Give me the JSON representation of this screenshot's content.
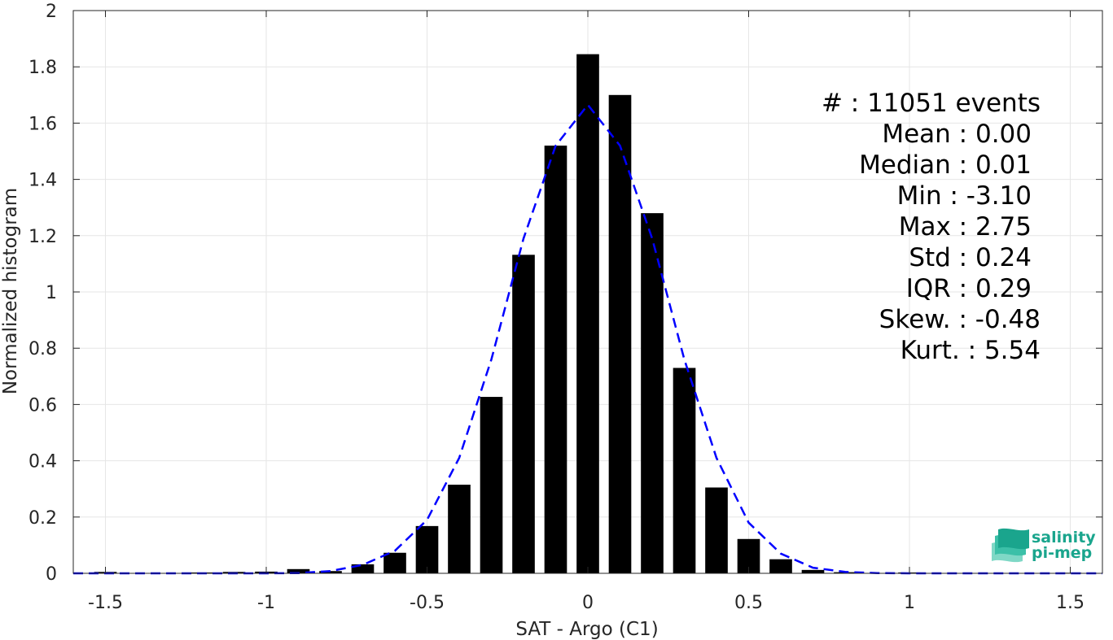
{
  "chart_data": {
    "type": "bar",
    "xlabel": "SAT - Argo (C1)",
    "ylabel": "Normalized histogram",
    "xlim": [
      -1.6,
      1.6
    ],
    "ylim": [
      0,
      2
    ],
    "grid": true,
    "xticks": [
      -1.5,
      -1,
      -0.5,
      0,
      0.5,
      1,
      1.5
    ],
    "xtick_labels": [
      "-1.5",
      "-1",
      "-0.5",
      "0",
      "0.5",
      "1",
      "1.5"
    ],
    "yticks": [
      0,
      0.2,
      0.4,
      0.6,
      0.8,
      1,
      1.2,
      1.4,
      1.6,
      1.8,
      2
    ],
    "ytick_labels": [
      "0",
      "0.2",
      "0.4",
      "0.6",
      "0.8",
      "1",
      "1.2",
      "1.4",
      "1.6",
      "1.8",
      "2"
    ],
    "bar_width": 0.07,
    "bars": {
      "x": [
        -1.5,
        -1.4,
        -1.3,
        -1.2,
        -1.1,
        -1.0,
        -0.9,
        -0.8,
        -0.7,
        -0.6,
        -0.5,
        -0.4,
        -0.3,
        -0.2,
        -0.1,
        0.0,
        0.1,
        0.2,
        0.3,
        0.4,
        0.5,
        0.6,
        0.7,
        0.8,
        0.9,
        1.0,
        1.1,
        1.2,
        1.3,
        1.4,
        1.5
      ],
      "values": [
        0.005,
        0.0,
        0.0,
        0.003,
        0.005,
        0.006,
        0.015,
        0.008,
        0.032,
        0.073,
        0.168,
        0.315,
        0.627,
        1.132,
        1.52,
        1.845,
        1.7,
        1.28,
        0.73,
        0.305,
        0.122,
        0.05,
        0.012,
        0.004,
        0.0,
        0.003,
        0.0,
        0.0,
        0.0,
        0.0,
        0.002
      ],
      "color": "#000000"
    },
    "fit_curve": {
      "style": "dashed",
      "color": "#0000ff",
      "x": [
        -1.6,
        -1.4,
        -1.2,
        -1.0,
        -0.9,
        -0.8,
        -0.7,
        -0.6,
        -0.5,
        -0.4,
        -0.3,
        -0.2,
        -0.1,
        0.0,
        0.1,
        0.2,
        0.3,
        0.4,
        0.5,
        0.6,
        0.7,
        0.8,
        0.9,
        1.0,
        1.2,
        1.4,
        1.6
      ],
      "y": [
        0.0,
        0.0,
        0.0,
        0.0,
        0.001,
        0.008,
        0.03,
        0.08,
        0.19,
        0.41,
        0.76,
        1.19,
        1.52,
        1.665,
        1.52,
        1.19,
        0.76,
        0.41,
        0.18,
        0.07,
        0.02,
        0.005,
        0.001,
        0.0,
        0.0,
        0.0,
        0.0
      ]
    },
    "stats": [
      "#  : 11051 events",
      "Mean : 0.00",
      "Median : 0.01",
      "Min : -3.10",
      "Max : 2.75",
      "Std : 0.24",
      "IQR : 0.29",
      "Skew. : -0.48",
      "Kurt. : 5.54"
    ]
  },
  "logo": {
    "line1": "salinity",
    "line2": "pi-mep",
    "colors": [
      "#1aa58d",
      "#3cc0a8",
      "#7fd8c6"
    ]
  }
}
